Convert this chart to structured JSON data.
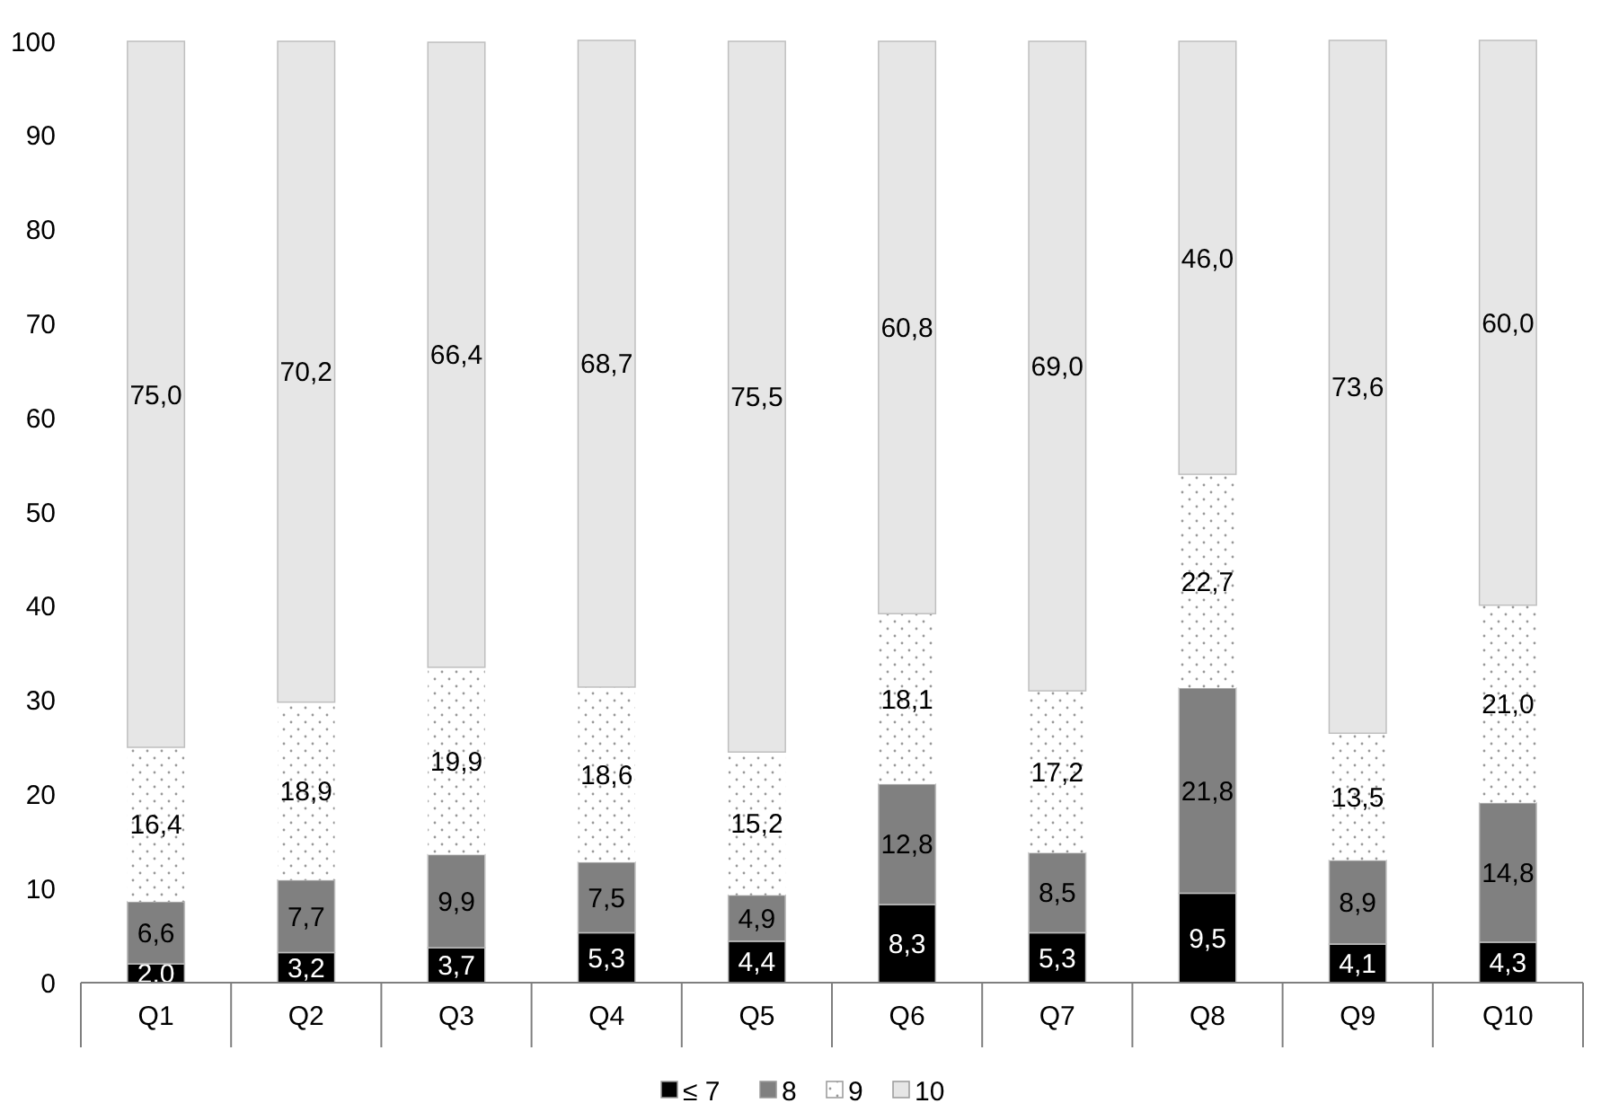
{
  "chart_data": {
    "type": "bar",
    "stacked": true,
    "categories": [
      "Q1",
      "Q2",
      "Q3",
      "Q4",
      "Q5",
      "Q6",
      "Q7",
      "Q8",
      "Q9",
      "Q10"
    ],
    "ylim": [
      0,
      100
    ],
    "yticks": [
      0,
      10,
      20,
      30,
      40,
      50,
      60,
      70,
      80,
      90,
      100
    ],
    "grid": false,
    "legend": "bottom",
    "series": [
      {
        "name": "≤ 7",
        "color": "#000000",
        "values": [
          2.0,
          3.2,
          3.7,
          5.3,
          4.4,
          8.3,
          5.3,
          9.5,
          4.1,
          4.3
        ],
        "value_labels": [
          "2,0",
          "3,2",
          "3,7",
          "5,3",
          "4,4",
          "8,3",
          "5,3",
          "9,5",
          "4,1",
          "4,3"
        ]
      },
      {
        "name": "8",
        "color": "#808080",
        "values": [
          6.6,
          7.7,
          9.9,
          7.5,
          4.9,
          12.8,
          8.5,
          21.8,
          8.9,
          14.8
        ],
        "value_labels": [
          "6,6",
          "7,7",
          "9,9",
          "7,5",
          "4,9",
          "12,8",
          "8,5",
          "21,8",
          "8,9",
          "14,8"
        ]
      },
      {
        "name": "9",
        "color": "#ffffff",
        "values": [
          16.4,
          18.9,
          19.9,
          18.6,
          15.2,
          18.1,
          17.2,
          22.7,
          13.5,
          21.0
        ],
        "value_labels": [
          "16,4",
          "18,9",
          "19,9",
          "18,6",
          "15,2",
          "18,1",
          "17,2",
          "22,7",
          "13,5",
          "21,0"
        ]
      },
      {
        "name": "10",
        "color": "#e6e6e6",
        "values": [
          75.0,
          70.2,
          66.4,
          68.7,
          75.5,
          60.8,
          69.0,
          46.0,
          73.6,
          60.0
        ],
        "value_labels": [
          "75,0",
          "70,2",
          "66,4",
          "68,7",
          "75,5",
          "60,8",
          "69,0",
          "46,0",
          "73,6",
          "60,0"
        ]
      }
    ]
  }
}
